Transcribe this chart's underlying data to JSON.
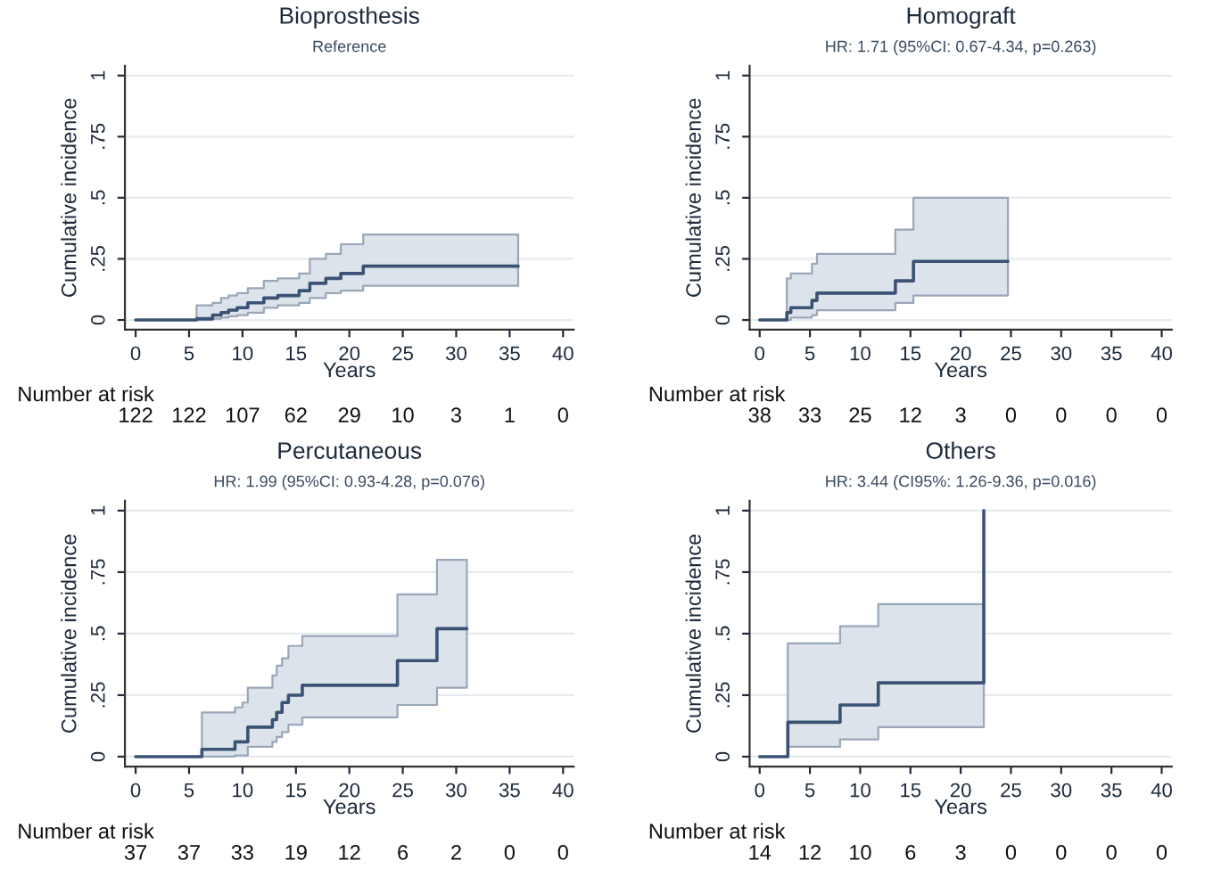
{
  "chart_data": [
    {
      "type": "step",
      "title": "Bioprosthesis",
      "subtitle": "Reference",
      "xlabel": "Years",
      "ylabel": "Cumulative incidence",
      "xlim": [
        -1,
        41
      ],
      "ylim": [
        -0.04,
        1.04
      ],
      "xticks": [
        0,
        5,
        10,
        15,
        20,
        25,
        30,
        35,
        40
      ],
      "yticks": [
        0,
        {
          "value": 0.25,
          "label": ".25"
        },
        {
          "value": 0.5,
          "label": ".5"
        },
        {
          "value": 0.75,
          "label": ".75"
        },
        1
      ],
      "grid": "y",
      "series": [
        {
          "color": "#3b5275",
          "x": [
            0,
            5.7,
            7.2,
            8,
            8.7,
            9.5,
            10.5,
            12,
            13.3,
            15.3,
            16.3,
            17.8,
            19.2,
            21.3,
            35.8
          ],
          "values": [
            0,
            0.005,
            0.02,
            0.03,
            0.04,
            0.05,
            0.07,
            0.09,
            0.1,
            0.12,
            0.15,
            0.17,
            0.19,
            0.22,
            0.22
          ],
          "lower": [
            null,
            0,
            0.005,
            0.01,
            0.015,
            0.02,
            0.03,
            0.05,
            0.06,
            0.07,
            0.09,
            0.11,
            0.12,
            0.14,
            0.14
          ],
          "upper": [
            null,
            0.06,
            0.07,
            0.09,
            0.1,
            0.11,
            0.13,
            0.16,
            0.17,
            0.19,
            0.25,
            0.27,
            0.31,
            0.35,
            0.35
          ]
        }
      ],
      "annotations": [
        "Number at risk",
        "122",
        "122",
        "107",
        "62",
        "29",
        "10",
        "3",
        "1",
        "0"
      ]
    },
    {
      "type": "step",
      "title": "Homograft",
      "subtitle": "HR: 1.71 (95%CI: 0.67-4.34, p=0.263)",
      "xlabel": "Years",
      "ylabel": "Cumulative incidence",
      "xlim": [
        -1,
        41
      ],
      "ylim": [
        -0.04,
        1.04
      ],
      "xticks": [
        0,
        5,
        10,
        15,
        20,
        25,
        30,
        35,
        40
      ],
      "yticks": [
        0,
        {
          "value": 0.25,
          "label": ".25"
        },
        {
          "value": 0.5,
          "label": ".5"
        },
        {
          "value": 0.75,
          "label": ".75"
        },
        1
      ],
      "grid": "y",
      "series": [
        {
          "color": "#3b5275",
          "x": [
            0,
            2.7,
            3.1,
            5.2,
            5.7,
            13.5,
            15.3,
            24.7
          ],
          "values": [
            0,
            0.03,
            0.05,
            0.08,
            0.11,
            0.16,
            0.24,
            0.24
          ],
          "lower": [
            null,
            0,
            0.01,
            0.02,
            0.04,
            0.07,
            0.1,
            0.1
          ],
          "upper": [
            null,
            0.17,
            0.19,
            0.23,
            0.27,
            0.37,
            0.5,
            0.5
          ]
        }
      ],
      "annotations": [
        "Number at risk",
        "38",
        "33",
        "25",
        "12",
        "3",
        "0",
        "0",
        "0",
        "0"
      ]
    },
    {
      "type": "step",
      "title": "Percutaneous",
      "subtitle": "HR: 1.99 (95%CI: 0.93-4.28, p=0.076)",
      "xlabel": "Years",
      "ylabel": "Cumulative incidence",
      "xlim": [
        -1,
        41
      ],
      "ylim": [
        -0.04,
        1.04
      ],
      "xticks": [
        0,
        5,
        10,
        15,
        20,
        25,
        30,
        35,
        40
      ],
      "yticks": [
        0,
        {
          "value": 0.25,
          "label": ".25"
        },
        {
          "value": 0.5,
          "label": ".5"
        },
        {
          "value": 0.75,
          "label": ".75"
        },
        1
      ],
      "grid": "y",
      "series": [
        {
          "color": "#3b5275",
          "x": [
            0,
            6.2,
            9.3,
            10,
            10.5,
            12.8,
            13.2,
            13.7,
            14.3,
            15.6,
            24.5,
            28.2,
            31
          ],
          "values": [
            0,
            0.03,
            0.06,
            0.06,
            0.12,
            0.15,
            0.18,
            0.22,
            0.25,
            0.29,
            0.39,
            0.52,
            0.52
          ],
          "lower": [
            null,
            0,
            0.005,
            0.005,
            0.04,
            0.06,
            0.08,
            0.1,
            0.13,
            0.16,
            0.21,
            0.28,
            0.28
          ],
          "upper": [
            null,
            0.18,
            0.2,
            0.22,
            0.28,
            0.33,
            0.37,
            0.4,
            0.45,
            0.49,
            0.66,
            0.8,
            0.8
          ]
        }
      ],
      "annotations": [
        "Number at risk",
        "37",
        "37",
        "33",
        "19",
        "12",
        "6",
        "2",
        "0",
        "0"
      ]
    },
    {
      "type": "step",
      "title": "Others",
      "subtitle": "HR: 3.44 (CI95%: 1.26-9.36, p=0.016)",
      "xlabel": "Years",
      "ylabel": "Cumulative incidence",
      "xlim": [
        -1,
        41
      ],
      "ylim": [
        -0.04,
        1.04
      ],
      "xticks": [
        0,
        5,
        10,
        15,
        20,
        25,
        30,
        35,
        40
      ],
      "yticks": [
        0,
        {
          "value": 0.25,
          "label": ".25"
        },
        {
          "value": 0.5,
          "label": ".5"
        },
        {
          "value": 0.75,
          "label": ".75"
        },
        1
      ],
      "grid": "y",
      "series": [
        {
          "color": "#3b5275",
          "x": [
            0,
            2.8,
            8,
            11.8,
            22.3
          ],
          "values": [
            0,
            0.14,
            0.21,
            0.3,
            1.0
          ],
          "lower": [
            null,
            0.04,
            0.07,
            0.12,
            0.12
          ],
          "upper": [
            null,
            0.46,
            0.53,
            0.62,
            0.62
          ]
        }
      ],
      "annotations": [
        "Number at risk",
        "14",
        "12",
        "10",
        "6",
        "3",
        "0",
        "0",
        "0",
        "0"
      ]
    }
  ]
}
